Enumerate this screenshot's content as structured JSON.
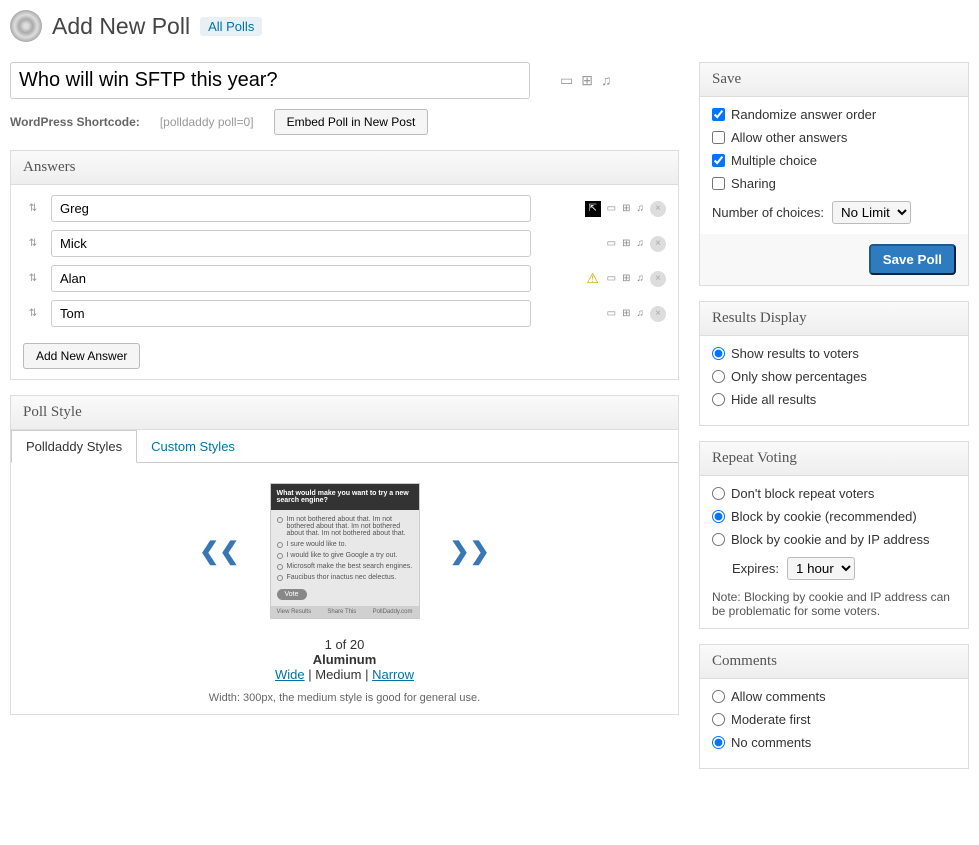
{
  "header": {
    "title": "Add New Poll",
    "all_link": "All Polls"
  },
  "question": {
    "value": "Who will win SFTP this year?"
  },
  "shortcode": {
    "label": "WordPress Shortcode:",
    "code": "[polldaddy poll=0]",
    "embed_btn": "Embed Poll in New Post"
  },
  "answers": {
    "heading": "Answers",
    "items": [
      "Greg",
      "Mick",
      "Alan",
      "Tom"
    ],
    "add_btn": "Add New Answer"
  },
  "style": {
    "heading": "Poll Style",
    "tab1": "Polldaddy Styles",
    "tab2": "Custom Styles",
    "preview_question": "What would make you want to try a new search engine?",
    "preview_options": [
      "Im not bothered about that. Im not bothered about that. Im not bothered about that. Im not bothered about that.",
      "I sure would like to.",
      "I would like to give Google a try out.",
      "Microsoft make the best search engines.",
      "Faucibus thor inactus nec delectus."
    ],
    "vote": "Vote",
    "footer_left": "View Results",
    "footer_mid": "Share This",
    "footer_right": "PollDaddy.com",
    "counter": "1 of 20",
    "name": "Aluminum",
    "size_wide": "Wide",
    "size_med": "Medium",
    "size_narrow": "Narrow",
    "note": "Width: 300px, the medium style is good for general use."
  },
  "save": {
    "heading": "Save",
    "opt_random": "Randomize answer order",
    "opt_other": "Allow other answers",
    "opt_multi": "Multiple choice",
    "opt_share": "Sharing",
    "choices_label": "Number of choices:",
    "choices_val": "No Limit",
    "btn": "Save Poll"
  },
  "results": {
    "heading": "Results Display",
    "opt1": "Show results to voters",
    "opt2": "Only show percentages",
    "opt3": "Hide all results"
  },
  "repeat": {
    "heading": "Repeat Voting",
    "opt1": "Don't block repeat voters",
    "opt2": "Block by cookie (recommended)",
    "opt3": "Block by cookie and by IP address",
    "expires_label": "Expires:",
    "expires_val": "1 hour",
    "note": "Note: Blocking by cookie and IP address can be problematic for some voters."
  },
  "comments": {
    "heading": "Comments",
    "opt1": "Allow comments",
    "opt2": "Moderate first",
    "opt3": "No comments"
  }
}
